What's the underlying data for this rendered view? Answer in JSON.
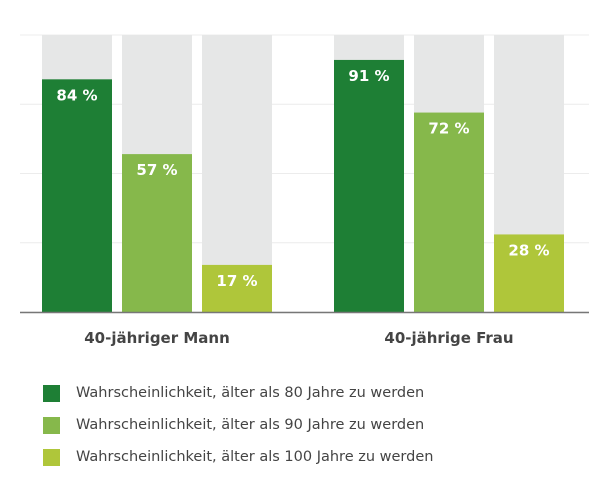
{
  "chart_data": {
    "type": "bar",
    "categories": [
      "40-jähriger Mann",
      "40-jährige Frau"
    ],
    "series": [
      {
        "name": "Wahrscheinlichkeit, älter als 80 Jahre zu werden",
        "values": [
          84,
          91
        ],
        "color": "#1e7f35"
      },
      {
        "name": "Wahrscheinlichkeit, älter als 90 Jahre zu werden",
        "values": [
          57,
          72
        ],
        "color": "#86b84b"
      },
      {
        "name": "Wahrscheinlichkeit, älter als 100 Jahre zu werden",
        "values": [
          17,
          28
        ],
        "color": "#afc63a"
      }
    ],
    "value_suffix": " %",
    "ylim": [
      0,
      100
    ],
    "grid": true,
    "background_bar_color": "#e6e7e7",
    "legend_position": "bottom"
  }
}
